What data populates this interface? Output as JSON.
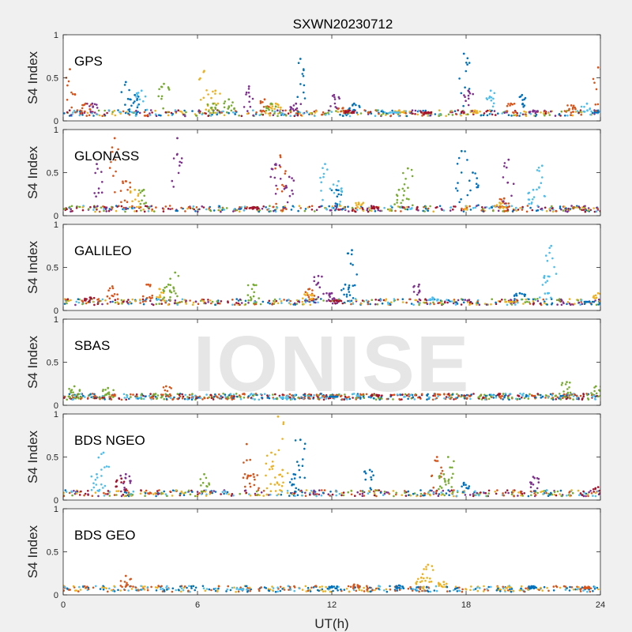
{
  "chart_data": {
    "type": "scatter",
    "title": "SXWN20230712",
    "xlabel": "UT(h)",
    "ylabel": "S4 Index",
    "watermark": "IONISE",
    "xlim": [
      0,
      24
    ],
    "xticks": [
      "0",
      "6",
      "12",
      "18",
      "24"
    ],
    "ylim": [
      0,
      1
    ],
    "yticks": [
      "0",
      "0.5",
      "1"
    ],
    "background": "#f0f0f0",
    "axes_color": "#ffffff",
    "colors": [
      "#0072bd",
      "#d95319",
      "#edb120",
      "#7e2f8e",
      "#77ac30",
      "#4dbeee",
      "#a2142f"
    ],
    "panels": [
      {
        "name": "GPS",
        "baseline": 0.09,
        "series": [
          {
            "color_index": 0,
            "points": [
              [
                2.8,
                0.45
              ],
              [
                3.2,
                0.3
              ],
              [
                10.6,
                0.72
              ],
              [
                13.0,
                0.2
              ],
              [
                17.9,
                0.78
              ],
              [
                20.5,
                0.3
              ],
              [
                23.9,
                0.12
              ]
            ]
          },
          {
            "color_index": 1,
            "points": [
              [
                0.3,
                0.6
              ],
              [
                1.0,
                0.2
              ],
              [
                9.0,
                0.25
              ],
              [
                12.5,
                0.15
              ],
              [
                20.0,
                0.2
              ],
              [
                22.7,
                0.18
              ],
              [
                23.9,
                0.62
              ]
            ]
          },
          {
            "color_index": 2,
            "points": [
              [
                6.3,
                0.58
              ],
              [
                6.8,
                0.35
              ],
              [
                9.5,
                0.2
              ],
              [
                15.0,
                0.12
              ],
              [
                18.4,
                0.12
              ]
            ]
          },
          {
            "color_index": 3,
            "points": [
              [
                1.3,
                0.2
              ],
              [
                8.3,
                0.4
              ],
              [
                10.4,
                0.2
              ],
              [
                12.1,
                0.3
              ],
              [
                18.1,
                0.35
              ],
              [
                21.0,
                0.12
              ]
            ]
          },
          {
            "color_index": 4,
            "points": [
              [
                4.5,
                0.43
              ],
              [
                6.7,
                0.2
              ],
              [
                7.4,
                0.25
              ],
              [
                9.3,
                0.2
              ]
            ]
          },
          {
            "color_index": 5,
            "points": [
              [
                3.5,
                0.35
              ],
              [
                14.8,
                0.1
              ],
              [
                19.1,
                0.35
              ],
              [
                23.4,
                0.2
              ]
            ]
          },
          {
            "color_index": 6,
            "points": [
              [
                12.8,
                0.12
              ],
              [
                16.2,
                0.1
              ]
            ]
          }
        ]
      },
      {
        "name": "GLONASS",
        "baseline": 0.08,
        "series": [
          {
            "color_index": 0,
            "points": [
              [
                12.2,
                0.3
              ],
              [
                17.8,
                0.75
              ],
              [
                18.3,
                0.5
              ]
            ]
          },
          {
            "color_index": 1,
            "points": [
              [
                2.3,
                0.9
              ],
              [
                2.8,
                0.4
              ],
              [
                9.7,
                0.7
              ],
              [
                19.7,
                0.2
              ]
            ]
          },
          {
            "color_index": 2,
            "points": [
              [
                3.2,
                0.3
              ],
              [
                13.2,
                0.15
              ],
              [
                19.5,
                0.15
              ]
            ]
          },
          {
            "color_index": 3,
            "points": [
              [
                1.5,
                0.6
              ],
              [
                5.1,
                0.9
              ],
              [
                9.5,
                0.6
              ],
              [
                10.1,
                0.45
              ],
              [
                19.9,
                0.65
              ]
            ]
          },
          {
            "color_index": 4,
            "points": [
              [
                3.6,
                0.3
              ],
              [
                15.4,
                0.55
              ],
              [
                15.0,
                0.3
              ]
            ]
          },
          {
            "color_index": 5,
            "points": [
              [
                11.7,
                0.6
              ],
              [
                12.3,
                0.4
              ],
              [
                21.4,
                0.58
              ],
              [
                21.0,
                0.3
              ]
            ]
          },
          {
            "color_index": 6,
            "points": [
              [
                8.5,
                0.1
              ],
              [
                14.0,
                0.1
              ]
            ]
          }
        ]
      },
      {
        "name": "GALILEO",
        "baseline": 0.1,
        "series": [
          {
            "color_index": 0,
            "points": [
              [
                12.9,
                0.7
              ],
              [
                12.6,
                0.3
              ],
              [
                20.4,
                0.2
              ],
              [
                23.5,
                0.1
              ]
            ]
          },
          {
            "color_index": 1,
            "points": [
              [
                2.2,
                0.28
              ],
              [
                3.8,
                0.3
              ],
              [
                11.0,
                0.25
              ]
            ]
          },
          {
            "color_index": 2,
            "points": [
              [
                4.3,
                0.25
              ],
              [
                10.9,
                0.2
              ],
              [
                23.9,
                0.2
              ],
              [
                20.0,
                0.1
              ]
            ]
          },
          {
            "color_index": 3,
            "points": [
              [
                11.4,
                0.4
              ],
              [
                15.9,
                0.3
              ],
              [
                12.0,
                0.2
              ]
            ]
          },
          {
            "color_index": 4,
            "points": [
              [
                5.0,
                0.44
              ],
              [
                8.5,
                0.3
              ],
              [
                4.7,
                0.3
              ]
            ]
          },
          {
            "color_index": 5,
            "points": [
              [
                21.8,
                0.75
              ],
              [
                21.5,
                0.4
              ],
              [
                16.5,
                0.15
              ]
            ]
          },
          {
            "color_index": 6,
            "points": [
              [
                1.2,
                0.15
              ],
              [
                12.2,
                0.12
              ]
            ]
          }
        ]
      },
      {
        "name": "SBAS",
        "baseline": 0.1,
        "series": [
          {
            "color_index": 0,
            "points": [
              [
                12.0,
                0.1
              ]
            ]
          },
          {
            "color_index": 1,
            "points": [
              [
                4.6,
                0.22
              ]
            ]
          },
          {
            "color_index": 4,
            "points": [
              [
                0.5,
                0.22
              ],
              [
                2.0,
                0.2
              ],
              [
                22.5,
                0.27
              ],
              [
                23.8,
                0.22
              ]
            ]
          },
          {
            "color_index": 5,
            "points": [
              [
                10.0,
                0.07
              ]
            ]
          },
          {
            "color_index": 6,
            "points": [
              [
                14.0,
                0.12
              ]
            ]
          }
        ]
      },
      {
        "name": "BDS NGEO",
        "baseline": 0.08,
        "series": [
          {
            "color_index": 0,
            "points": [
              [
                10.6,
                0.7
              ],
              [
                10.3,
                0.3
              ],
              [
                13.7,
                0.35
              ],
              [
                17.9,
                0.2
              ]
            ]
          },
          {
            "color_index": 1,
            "points": [
              [
                8.2,
                0.65
              ],
              [
                16.7,
                0.5
              ],
              [
                8.5,
                0.3
              ]
            ]
          },
          {
            "color_index": 2,
            "points": [
              [
                9.3,
                0.55
              ],
              [
                9.6,
                0.97
              ],
              [
                9.8,
                0.35
              ]
            ]
          },
          {
            "color_index": 3,
            "points": [
              [
                2.8,
                0.3
              ],
              [
                21.0,
                0.27
              ]
            ]
          },
          {
            "color_index": 4,
            "points": [
              [
                6.3,
                0.3
              ],
              [
                17.2,
                0.5
              ],
              [
                17.0,
                0.3
              ]
            ]
          },
          {
            "color_index": 5,
            "points": [
              [
                1.8,
                0.55
              ],
              [
                1.5,
                0.3
              ]
            ]
          },
          {
            "color_index": 6,
            "points": [
              [
                2.6,
                0.25
              ],
              [
                23.9,
                0.15
              ]
            ]
          }
        ]
      },
      {
        "name": "BDS GEO",
        "baseline": 0.07,
        "series": [
          {
            "color_index": 0,
            "points": [
              [
                12.0,
                0.1
              ],
              [
                15.0,
                0.11
              ],
              [
                21.0,
                0.1
              ]
            ]
          },
          {
            "color_index": 1,
            "points": [
              [
                2.8,
                0.22
              ],
              [
                13.0,
                0.12
              ],
              [
                23.5,
                0.09
              ]
            ]
          },
          {
            "color_index": 2,
            "points": [
              [
                16.3,
                0.35
              ],
              [
                16.0,
                0.2
              ],
              [
                17.0,
                0.15
              ]
            ]
          },
          {
            "color_index": 5,
            "points": [
              [
                8.0,
                0.06
              ]
            ]
          }
        ]
      }
    ]
  }
}
